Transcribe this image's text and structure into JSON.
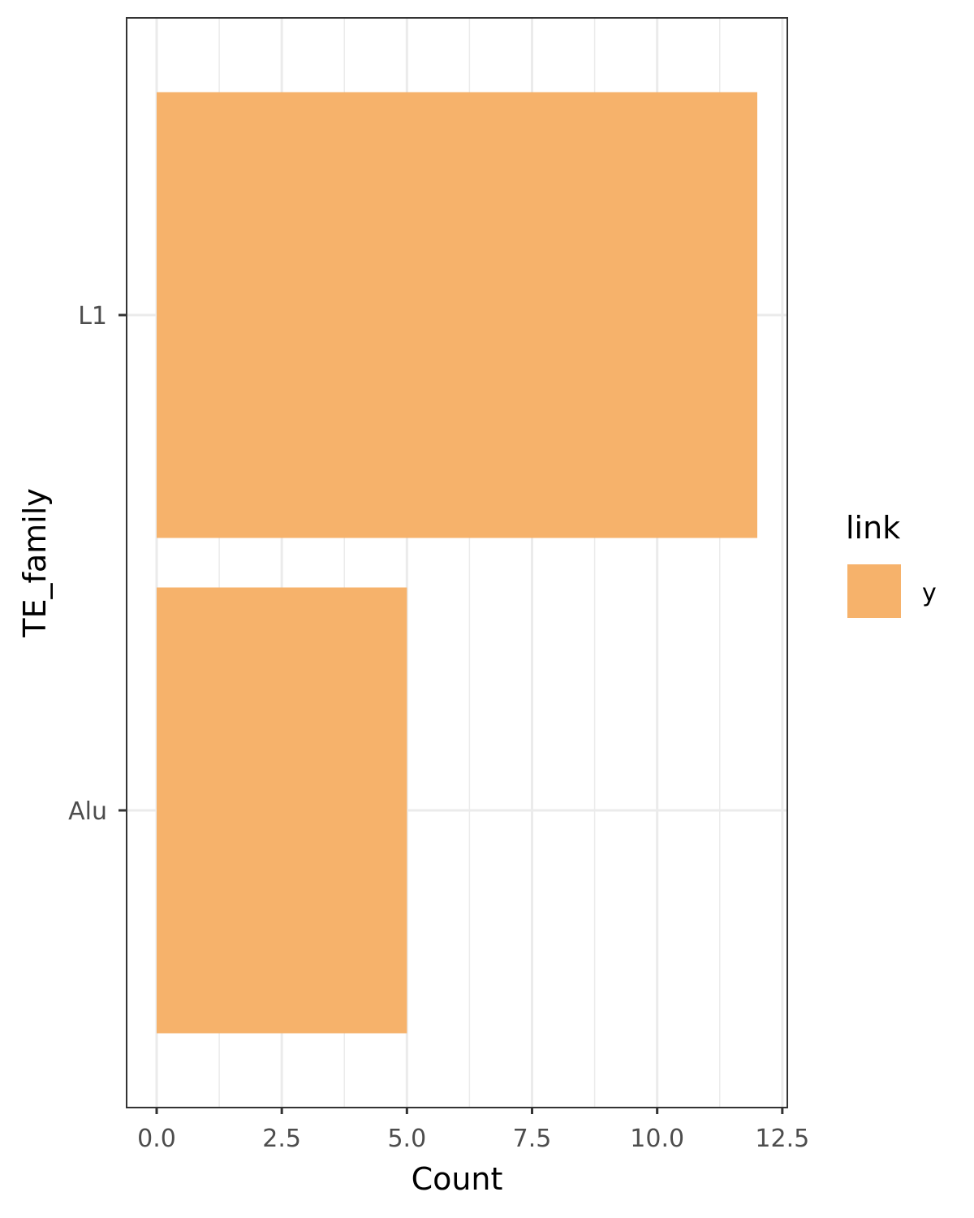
{
  "chart_data": {
    "type": "bar",
    "orientation": "horizontal",
    "categories": [
      "Alu",
      "L1"
    ],
    "series": [
      {
        "name": "y",
        "values": [
          5,
          12
        ]
      }
    ],
    "xlabel": "Count",
    "ylabel": "TE_family",
    "xlim": [
      -0.6,
      12.6
    ],
    "xticks": [
      "0.0",
      "2.5",
      "5.0",
      "7.5",
      "10.0",
      "12.5"
    ],
    "grid": true,
    "legend": {
      "title": "link",
      "placement": "right"
    },
    "colors": {
      "bar": "#F6B26B",
      "grid": "#EBEBEB",
      "border": "#333333"
    }
  }
}
